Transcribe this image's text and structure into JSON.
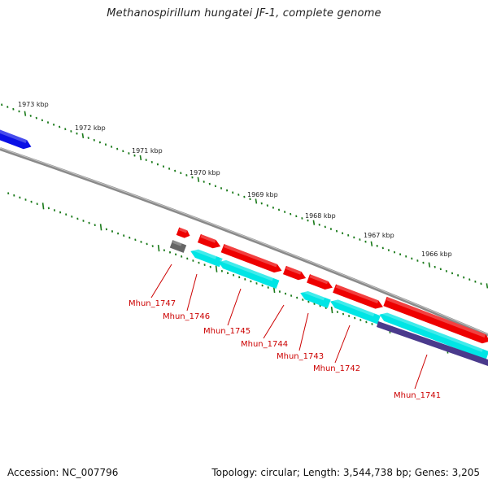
{
  "title": "Methanospirillum hungatei JF-1, complete genome",
  "footer": {
    "accession": "Accession: NC_007796",
    "summary": "Topology: circular; Length: 3,544,738 bp; Genes: 3,205"
  },
  "colors": {
    "backbone": "#8a8a8a",
    "forward_gene": "#ee0000",
    "reverse_cds": "#00e5e5",
    "reverse_other": "#4a3a8c",
    "blue_feature": "#0a10e6",
    "gray_feature": "#666666",
    "ticks": "#1a7a1a",
    "label": "#cc0000"
  },
  "scale_labels": [
    "1973 kbp",
    "1972 kbp",
    "1971 kbp",
    "1970 kbp",
    "1969 kbp",
    "1968 kbp",
    "1967 kbp",
    "1966 kbp"
  ],
  "gene_labels": [
    "Mhun_1747",
    "Mhun_1746",
    "Mhun_1745",
    "Mhun_1744",
    "Mhun_1743",
    "Mhun_1742",
    "Mhun_1741"
  ]
}
